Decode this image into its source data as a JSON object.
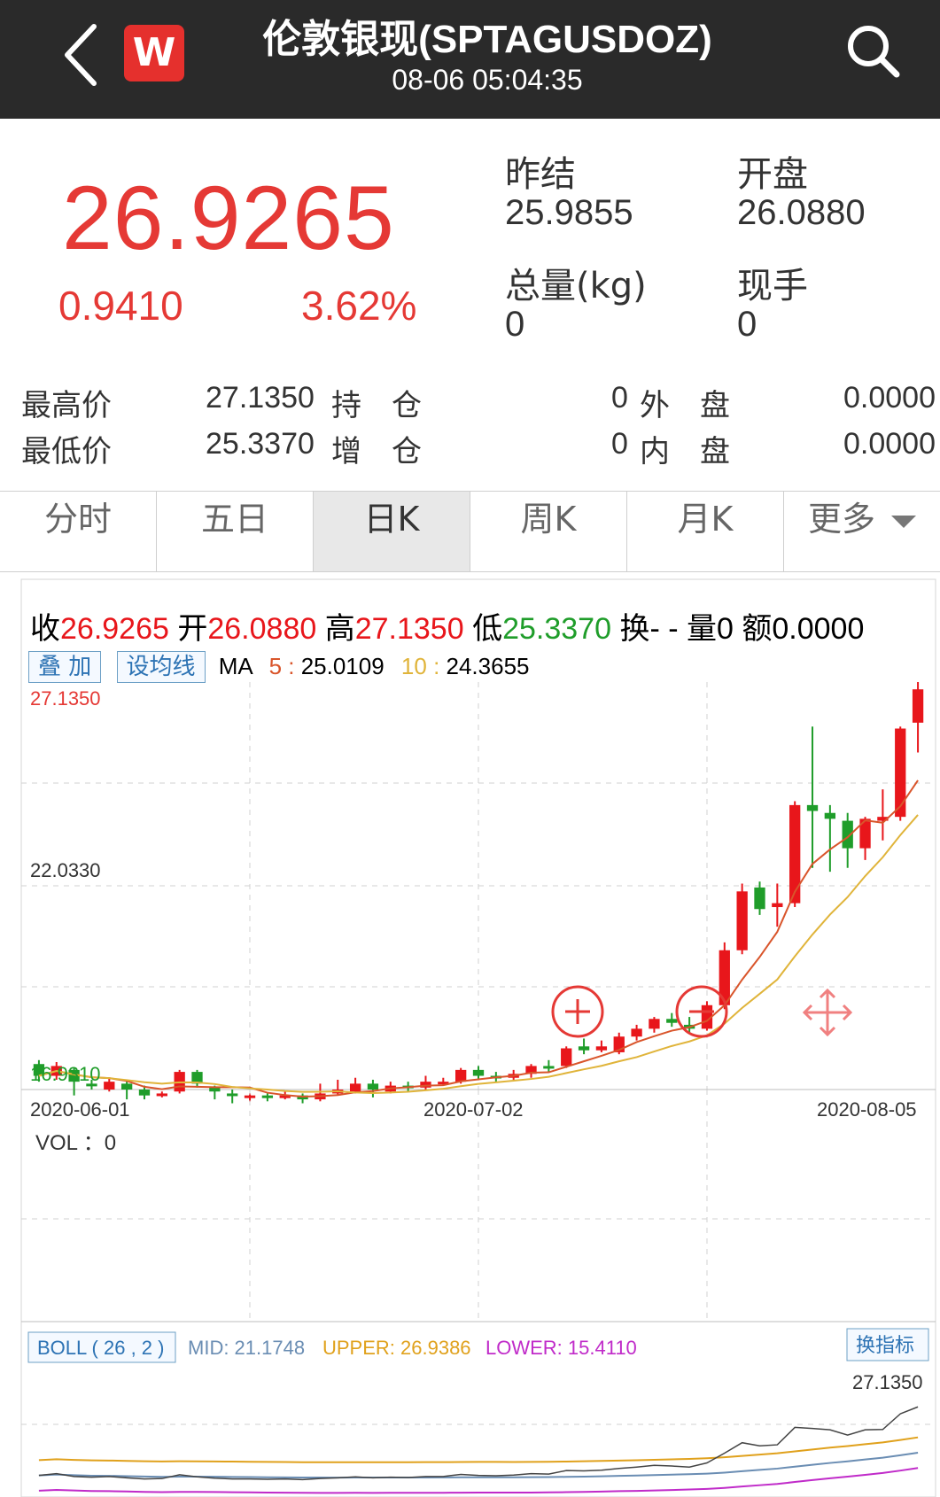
{
  "header": {
    "title": "伦敦银现(SPTAGUSDOZ)",
    "timestamp": "08-06 05:04:35",
    "logo_letter": "W"
  },
  "quote": {
    "price": "26.9265",
    "change": "0.9410",
    "change_pct": "3.62%",
    "prev_settle_label": "昨结",
    "prev_settle": "25.9855",
    "open_label": "开盘",
    "open": "26.0880",
    "volume_label": "总量(kg)",
    "volume": "0",
    "current_hand_label": "现手",
    "current_hand": "0"
  },
  "stats": {
    "high_label": "最高价",
    "high": "27.1350",
    "low_label": "最低价",
    "low": "25.3370",
    "position_label": "持　仓",
    "position": "0",
    "increase_label": "增　仓",
    "increase": "0",
    "outer_label": "外　盘",
    "outer": "0.0000",
    "inner_label": "内　盘",
    "inner": "0.0000"
  },
  "tabs": [
    "分时",
    "五日",
    "日K",
    "周K",
    "月K",
    "更多"
  ],
  "ohlc": {
    "close_label": "收",
    "close": "26.9265",
    "open_label": "开",
    "open": "26.0880",
    "high_label": "高",
    "high": "27.1350",
    "low_label": "低",
    "low": "25.3370",
    "turnover_label": "换",
    "turnover": "- -",
    "vol_label": "量",
    "vol": "0",
    "amount_label": "额",
    "amount": "0.0000"
  },
  "ma_bar": {
    "overlay_btn": "叠 加",
    "ma_btn": "设均线",
    "ma_label": "MA",
    "ma5_key": "5",
    "ma5": "25.0109",
    "ma10_key": "10",
    "ma10": "24.3655"
  },
  "axis": {
    "y_top": "27.1350",
    "y_mid": "22.0330",
    "y_bottom": "16.9310",
    "dates": [
      "2020-06-01",
      "2020-07-02",
      "2020-08-05"
    ]
  },
  "vol_panel": {
    "label": "VOL ：0"
  },
  "boll_panel": {
    "name": "BOLL ( 26 , 2 )",
    "mid": "MID: 21.1748",
    "upper": "UPPER: 26.9386",
    "lower": "LOWER: 15.4110",
    "switch_btn": "换指标",
    "high_label": "27.1350"
  },
  "colors": {
    "up": "#e8161b",
    "down": "#1f9d2a",
    "ma5": "#d9552b",
    "ma10": "#e0b43a",
    "header_bg": "#2a2a2a"
  },
  "chart_data": {
    "type": "candlestick",
    "ylim": [
      16.931,
      27.135
    ],
    "candles": [
      {
        "o": 17.4,
        "c": 17.1,
        "h": 17.5,
        "l": 16.95
      },
      {
        "o": 17.1,
        "c": 17.35,
        "h": 17.45,
        "l": 17.0
      },
      {
        "o": 17.25,
        "c": 16.95,
        "h": 17.3,
        "l": 16.6
      },
      {
        "o": 16.9,
        "c": 16.85,
        "h": 17.0,
        "l": 16.75
      },
      {
        "o": 16.75,
        "c": 16.95,
        "h": 17.05,
        "l": 16.7
      },
      {
        "o": 16.9,
        "c": 16.75,
        "h": 17.0,
        "l": 16.5
      },
      {
        "o": 16.75,
        "c": 16.6,
        "h": 16.85,
        "l": 16.5
      },
      {
        "o": 16.6,
        "c": 16.65,
        "h": 16.7,
        "l": 16.55
      },
      {
        "o": 16.7,
        "c": 17.2,
        "h": 17.25,
        "l": 16.65
      },
      {
        "o": 17.2,
        "c": 16.9,
        "h": 17.25,
        "l": 16.8
      },
      {
        "o": 16.8,
        "c": 16.7,
        "h": 16.85,
        "l": 16.5
      },
      {
        "o": 16.65,
        "c": 16.6,
        "h": 16.75,
        "l": 16.4
      },
      {
        "o": 16.55,
        "c": 16.6,
        "h": 16.65,
        "l": 16.45
      },
      {
        "o": 16.6,
        "c": 16.55,
        "h": 16.65,
        "l": 16.45
      },
      {
        "o": 16.55,
        "c": 16.6,
        "h": 16.7,
        "l": 16.5
      },
      {
        "o": 16.6,
        "c": 16.5,
        "h": 16.65,
        "l": 16.4
      },
      {
        "o": 16.5,
        "c": 16.65,
        "h": 16.9,
        "l": 16.45
      },
      {
        "o": 16.65,
        "c": 16.75,
        "h": 17.0,
        "l": 16.6
      },
      {
        "o": 16.7,
        "c": 16.9,
        "h": 17.05,
        "l": 16.65
      },
      {
        "o": 16.9,
        "c": 16.75,
        "h": 17.0,
        "l": 16.55
      },
      {
        "o": 16.7,
        "c": 16.85,
        "h": 16.95,
        "l": 16.65
      },
      {
        "o": 16.85,
        "c": 16.8,
        "h": 16.95,
        "l": 16.7
      },
      {
        "o": 16.8,
        "c": 16.95,
        "h": 17.1,
        "l": 16.75
      },
      {
        "o": 16.95,
        "c": 16.95,
        "h": 17.05,
        "l": 16.85
      },
      {
        "o": 16.95,
        "c": 17.25,
        "h": 17.3,
        "l": 16.9
      },
      {
        "o": 17.25,
        "c": 17.1,
        "h": 17.35,
        "l": 17.0
      },
      {
        "o": 17.1,
        "c": 17.05,
        "h": 17.2,
        "l": 16.95
      },
      {
        "o": 17.05,
        "c": 17.15,
        "h": 17.25,
        "l": 17.0
      },
      {
        "o": 17.15,
        "c": 17.35,
        "h": 17.4,
        "l": 17.05
      },
      {
        "o": 17.35,
        "c": 17.3,
        "h": 17.5,
        "l": 17.2
      },
      {
        "o": 17.35,
        "c": 17.8,
        "h": 17.85,
        "l": 17.3
      },
      {
        "o": 17.85,
        "c": 17.75,
        "h": 18.05,
        "l": 17.65
      },
      {
        "o": 17.75,
        "c": 17.85,
        "h": 18.0,
        "l": 17.7
      },
      {
        "o": 17.7,
        "c": 18.1,
        "h": 18.2,
        "l": 17.65
      },
      {
        "o": 18.1,
        "c": 18.3,
        "h": 18.4,
        "l": 18.0
      },
      {
        "o": 18.3,
        "c": 18.55,
        "h": 18.6,
        "l": 18.2
      },
      {
        "o": 18.55,
        "c": 18.45,
        "h": 18.7,
        "l": 18.35
      },
      {
        "o": 18.4,
        "c": 18.3,
        "h": 18.6,
        "l": 18.2
      },
      {
        "o": 18.3,
        "c": 18.9,
        "h": 19.0,
        "l": 18.25
      },
      {
        "o": 18.9,
        "c": 20.3,
        "h": 20.5,
        "l": 18.8
      },
      {
        "o": 20.3,
        "c": 21.8,
        "h": 22.0,
        "l": 20.2
      },
      {
        "o": 21.9,
        "c": 21.35,
        "h": 22.05,
        "l": 21.2
      },
      {
        "o": 21.4,
        "c": 21.5,
        "h": 22.0,
        "l": 20.9
      },
      {
        "o": 21.5,
        "c": 24.0,
        "h": 24.1,
        "l": 21.4
      },
      {
        "o": 24.0,
        "c": 23.85,
        "h": 26.0,
        "l": 22.4
      },
      {
        "o": 23.8,
        "c": 23.65,
        "h": 24.0,
        "l": 22.3
      },
      {
        "o": 23.6,
        "c": 22.9,
        "h": 23.8,
        "l": 22.4
      },
      {
        "o": 22.9,
        "c": 23.65,
        "h": 23.7,
        "l": 22.6
      },
      {
        "o": 23.6,
        "c": 23.7,
        "h": 24.4,
        "l": 23.1
      },
      {
        "o": 23.7,
        "c": 25.95,
        "h": 26.0,
        "l": 23.6
      },
      {
        "o": 26.1,
        "c": 26.95,
        "h": 27.135,
        "l": 25.34
      }
    ]
  }
}
